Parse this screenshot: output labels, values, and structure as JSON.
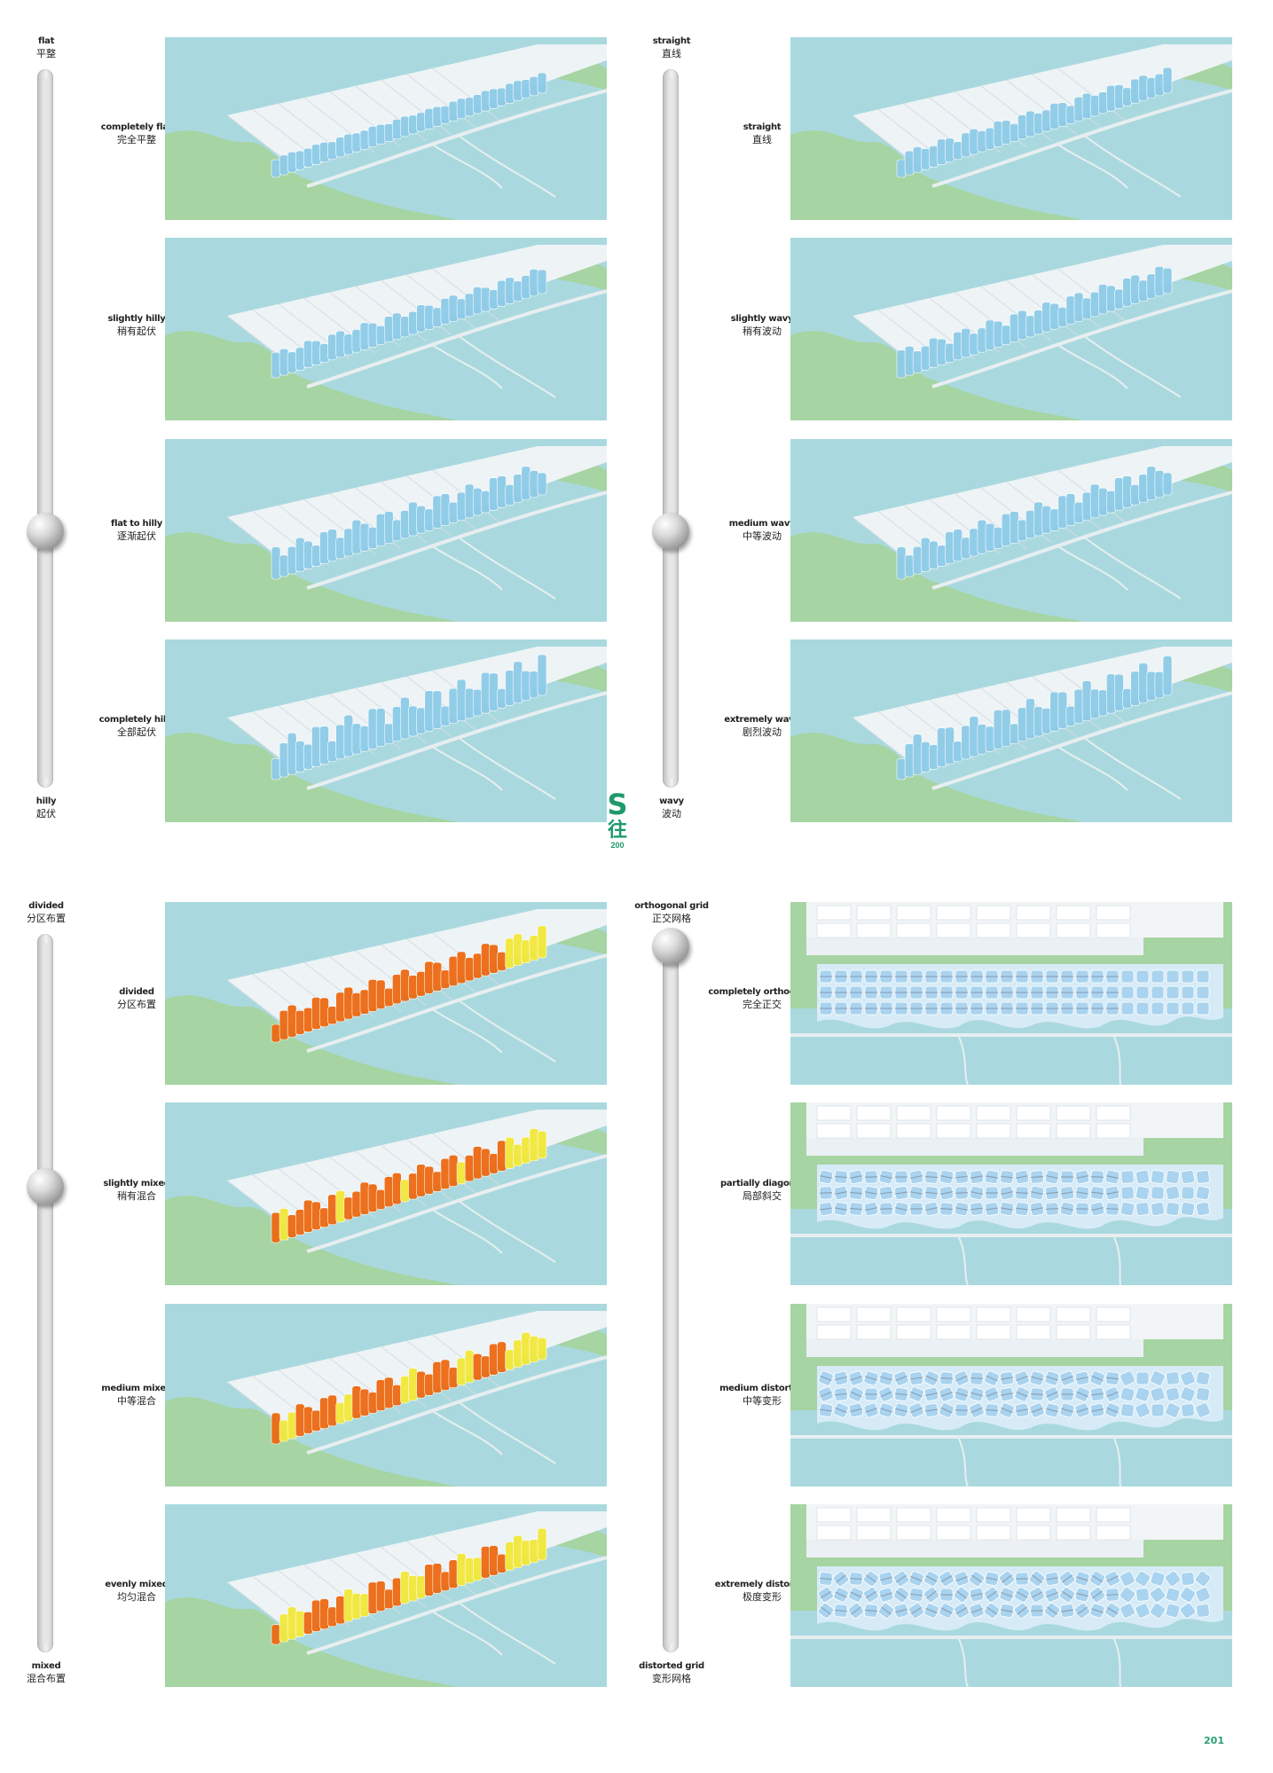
{
  "panels": [
    {
      "id": "panel-flat-hilly",
      "top_label": {
        "en": "flat",
        "cn": "平整"
      },
      "bottom_label": {
        "en": "hilly",
        "cn": "起伏"
      },
      "slider_level": 0.67,
      "render": "perspective",
      "colors": {
        "primary": "#8ecbe8",
        "secondary": "#8ecbe8"
      },
      "rows": [
        {
          "en": "completely flat",
          "cn": "完全平整",
          "wave": 0.1,
          "mix": 0
        },
        {
          "en": "slightly hilly",
          "cn": "稍有起伏",
          "wave": 0.35,
          "mix": 0
        },
        {
          "en": "flat to hilly",
          "cn": "逐渐起伏",
          "wave": 0.6,
          "mix": 0
        },
        {
          "en": "completely hilly",
          "cn": "全部起伏",
          "wave": 0.9,
          "mix": 0
        }
      ]
    },
    {
      "id": "panel-straight-wavy",
      "top_label": {
        "en": "straight",
        "cn": "直线"
      },
      "bottom_label": {
        "en": "wavy",
        "cn": "波动"
      },
      "slider_level": 0.67,
      "render": "perspective",
      "colors": {
        "primary": "#8ecbe8",
        "secondary": "#8ecbe8"
      },
      "rows": [
        {
          "en": "straight",
          "cn": "直线",
          "wave": 0.3,
          "mix": 0
        },
        {
          "en": "slightly wavy",
          "cn": "稍有波动",
          "wave": 0.45,
          "mix": 0
        },
        {
          "en": "medium wavy",
          "cn": "中等波动",
          "wave": 0.6,
          "mix": 0
        },
        {
          "en": "extremely wavy",
          "cn": "剧烈波动",
          "wave": 0.85,
          "mix": 0
        }
      ]
    },
    {
      "id": "panel-divided-mixed",
      "top_label": {
        "en": "divided",
        "cn": "分区布置"
      },
      "bottom_label": {
        "en": "mixed",
        "cn": "混合布置"
      },
      "slider_level": 0.33,
      "render": "perspective",
      "colors": {
        "primary": "#ec6a12",
        "secondary": "#f2e83a"
      },
      "rows": [
        {
          "en": "divided",
          "cn": "分区布置",
          "wave": 0.55,
          "mix": 0.0
        },
        {
          "en": "slightly mixed",
          "cn": "稍有混合",
          "wave": 0.55,
          "mix": 0.2
        },
        {
          "en": "medium mixed",
          "cn": "中等混合",
          "wave": 0.55,
          "mix": 0.4
        },
        {
          "en": "evenly mixed",
          "cn": "均匀混合",
          "wave": 0.55,
          "mix": 0.6
        }
      ]
    },
    {
      "id": "panel-grid",
      "top_label": {
        "en": "orthogonal grid",
        "cn": "正交网格"
      },
      "bottom_label": {
        "en": "distorted grid",
        "cn": "变形网格"
      },
      "slider_level": 0.0,
      "render": "plan",
      "colors": {
        "primary": "#a9d3ee",
        "secondary": "#7c8ea6"
      },
      "rows": [
        {
          "en": "completely orthogonal",
          "cn": "完全正交",
          "wave": 0.0,
          "mix": 0
        },
        {
          "en": "partially diagonal",
          "cn": "局部斜交",
          "wave": 0.3,
          "mix": 0
        },
        {
          "en": "medium distorted",
          "cn": "中等变形",
          "wave": 0.6,
          "mix": 0
        },
        {
          "en": "extremely distorted",
          "cn": "极度变形",
          "wave": 0.95,
          "mix": 0
        }
      ]
    }
  ],
  "side_tab": {
    "letter": "S",
    "cn": "往",
    "num": "200"
  },
  "page_number": "201",
  "palette": {
    "water": "#a9d9de",
    "land": "#a6d4a2",
    "site": "#eef3f6",
    "road": "#e8eef0"
  }
}
